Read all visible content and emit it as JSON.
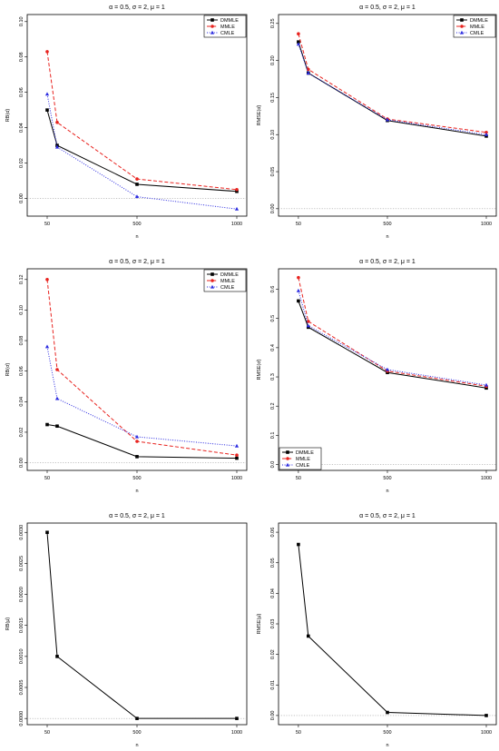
{
  "chart_data": [
    {
      "type": "line",
      "title": "α = 0.5, σ = 2, μ = 1",
      "xlabel": "n",
      "ylabel": "RB(α̂)",
      "x": [
        50,
        100,
        500,
        1000
      ],
      "xticks": [
        50,
        500,
        1000
      ],
      "xlim": [
        0,
        1000
      ],
      "ylim": [
        -0.01,
        0.104
      ],
      "yticks": [
        0,
        0.02,
        0.04,
        0.06,
        0.08,
        0.1
      ],
      "ytick_labels": [
        "0.00",
        "0.02",
        "0.04",
        "0.06",
        "0.08",
        "0.10"
      ],
      "reference_line": 0,
      "legend_position": "top-right",
      "series": [
        {
          "name": "DMMLE",
          "values": [
            0.05,
            0.03,
            0.008,
            0.004
          ],
          "color": "#000000",
          "style": "solid",
          "marker": "square"
        },
        {
          "name": "MMLE",
          "values": [
            0.083,
            0.043,
            0.011,
            0.005
          ],
          "color": "#e8231f",
          "style": "dashed",
          "marker": "circle"
        },
        {
          "name": "CMLE",
          "values": [
            0.059,
            0.029,
            0.001,
            -0.006
          ],
          "color": "#2a2ae0",
          "style": "dotted",
          "marker": "triangle"
        }
      ]
    },
    {
      "type": "line",
      "title": "α = 0.5, σ = 2, μ = 1",
      "xlabel": "n",
      "ylabel": "RMSE(α̂)",
      "x": [
        50,
        100,
        500,
        1000
      ],
      "xticks": [
        50,
        500,
        1000
      ],
      "xlim": [
        0,
        1000
      ],
      "ylim": [
        -0.01,
        0.262
      ],
      "yticks": [
        0,
        0.05,
        0.1,
        0.15,
        0.2,
        0.25
      ],
      "ytick_labels": [
        "0.00",
        "0.05",
        "0.10",
        "0.15",
        "0.20",
        "0.25"
      ],
      "reference_line": 0,
      "legend_position": "top-right",
      "series": [
        {
          "name": "DMMLE",
          "values": [
            0.225,
            0.183,
            0.119,
            0.098
          ],
          "color": "#000000",
          "style": "solid",
          "marker": "square"
        },
        {
          "name": "MMLE",
          "values": [
            0.236,
            0.188,
            0.121,
            0.103
          ],
          "color": "#e8231f",
          "style": "dashed",
          "marker": "circle"
        },
        {
          "name": "CMLE",
          "values": [
            0.222,
            0.183,
            0.12,
            0.1
          ],
          "color": "#2a2ae0",
          "style": "dotted",
          "marker": "triangle"
        }
      ]
    },
    {
      "type": "line",
      "title": "α = 0.5, σ = 2, μ = 1",
      "xlabel": "n",
      "ylabel": "RB(σ̂)",
      "x": [
        50,
        100,
        500,
        1000
      ],
      "xticks": [
        50,
        500,
        1000
      ],
      "xlim": [
        0,
        1000
      ],
      "ylim": [
        -0.005,
        0.127
      ],
      "yticks": [
        0,
        0.02,
        0.04,
        0.06,
        0.08,
        0.1,
        0.12
      ],
      "ytick_labels": [
        "0.00",
        "0.02",
        "0.04",
        "0.06",
        "0.08",
        "0.10",
        "0.12"
      ],
      "reference_line": 0,
      "legend_position": "top-right",
      "series": [
        {
          "name": "DMMLE",
          "values": [
            0.025,
            0.024,
            0.004,
            0.003
          ],
          "color": "#000000",
          "style": "solid",
          "marker": "square"
        },
        {
          "name": "MMLE",
          "values": [
            0.12,
            0.061,
            0.014,
            0.005
          ],
          "color": "#e8231f",
          "style": "dashed",
          "marker": "circle"
        },
        {
          "name": "CMLE",
          "values": [
            0.076,
            0.042,
            0.017,
            0.011
          ],
          "color": "#2a2ae0",
          "style": "dotted",
          "marker": "triangle"
        }
      ]
    },
    {
      "type": "line",
      "title": "α = 0.5, σ = 2, μ = 1",
      "xlabel": "n",
      "ylabel": "RMSE(σ̂)",
      "x": [
        50,
        100,
        500,
        1000
      ],
      "xticks": [
        50,
        500,
        1000
      ],
      "xlim": [
        0,
        1000
      ],
      "ylim": [
        -0.02,
        0.67
      ],
      "yticks": [
        0,
        0.1,
        0.2,
        0.3,
        0.4,
        0.5,
        0.6
      ],
      "ytick_labels": [
        "0.0",
        "0.1",
        "0.2",
        "0.3",
        "0.4",
        "0.5",
        "0.6"
      ],
      "reference_line": 0,
      "legend_position": "bottom-left",
      "series": [
        {
          "name": "DMMLE",
          "values": [
            0.56,
            0.47,
            0.315,
            0.262
          ],
          "color": "#000000",
          "style": "solid",
          "marker": "square"
        },
        {
          "name": "MMLE",
          "values": [
            0.64,
            0.49,
            0.32,
            0.268
          ],
          "color": "#e8231f",
          "style": "dashed",
          "marker": "circle"
        },
        {
          "name": "CMLE",
          "values": [
            0.595,
            0.475,
            0.325,
            0.272
          ],
          "color": "#2a2ae0",
          "style": "dotted",
          "marker": "triangle"
        }
      ]
    },
    {
      "type": "line",
      "title": "α = 0.5, σ = 2, μ = 1",
      "xlabel": "n",
      "ylabel": "RB(μ̂)",
      "x": [
        50,
        100,
        500,
        1000
      ],
      "xticks": [
        50,
        500,
        1000
      ],
      "xlim": [
        0,
        1000
      ],
      "ylim": [
        -0.0001,
        0.00315
      ],
      "yticks": [
        0,
        0.0005,
        0.001,
        0.0015,
        0.002,
        0.0025,
        0.003
      ],
      "ytick_labels": [
        "0.0000",
        "0.0005",
        "0.0010",
        "0.0015",
        "0.0020",
        "0.0025",
        "0.0030"
      ],
      "reference_line": 0,
      "series": [
        {
          "values": [
            0.003,
            0.001,
            0.0,
            0.0
          ],
          "color": "#000000",
          "style": "solid",
          "marker": "square"
        }
      ]
    },
    {
      "type": "line",
      "title": "α = 0.5, σ = 2, μ = 1",
      "xlabel": "n",
      "ylabel": "RMSE(μ̂)",
      "x": [
        50,
        100,
        500,
        1000
      ],
      "xticks": [
        50,
        500,
        1000
      ],
      "xlim": [
        0,
        1000
      ],
      "ylim": [
        -0.003,
        0.063
      ],
      "yticks": [
        0,
        0.01,
        0.02,
        0.03,
        0.04,
        0.05,
        0.06
      ],
      "ytick_labels": [
        "0.00",
        "0.01",
        "0.02",
        "0.03",
        "0.04",
        "0.05",
        "0.06"
      ],
      "reference_line": 0,
      "series": [
        {
          "values": [
            0.056,
            0.026,
            0.001,
            0.0
          ],
          "color": "#000000",
          "style": "solid",
          "marker": "square"
        }
      ]
    }
  ]
}
